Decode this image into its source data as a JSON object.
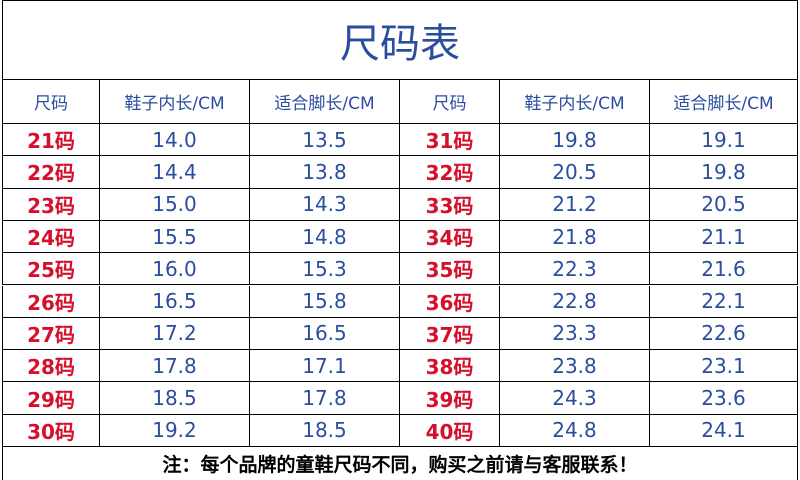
{
  "title": "尺码表",
  "header": [
    "尺码",
    "鞋子内长/CM",
    "适合脚长/CM",
    "尺码",
    "鞋子内长/CM",
    "适合脚长/CM"
  ],
  "rows": [
    [
      "21码",
      "14.0",
      "13.5",
      "31码",
      "19.8",
      "19.1"
    ],
    [
      "22码",
      "14.4",
      "13.8",
      "32码",
      "20.5",
      "19.8"
    ],
    [
      "23码",
      "15.0",
      "14.3",
      "33码",
      "21.2",
      "20.5"
    ],
    [
      "24码",
      "15.5",
      "14.8",
      "34码",
      "21.8",
      "21.1"
    ],
    [
      "25码",
      "16.0",
      "15.3",
      "35码",
      "22.3",
      "21.6"
    ],
    [
      "26码",
      "16.5",
      "15.8",
      "36码",
      "22.8",
      "22.1"
    ],
    [
      "27码",
      "17.2",
      "16.5",
      "37码",
      "23.3",
      "22.6"
    ],
    [
      "28码",
      "17.8",
      "17.1",
      "38码",
      "23.8",
      "23.1"
    ],
    [
      "29码",
      "18.5",
      "17.8",
      "39码",
      "24.3",
      "23.6"
    ],
    [
      "30码",
      "19.2",
      "18.5",
      "40码",
      "24.8",
      "24.1"
    ]
  ],
  "note": "注：每个品牌的童鞋尺码不同，购买之前请与客服联系！"
}
